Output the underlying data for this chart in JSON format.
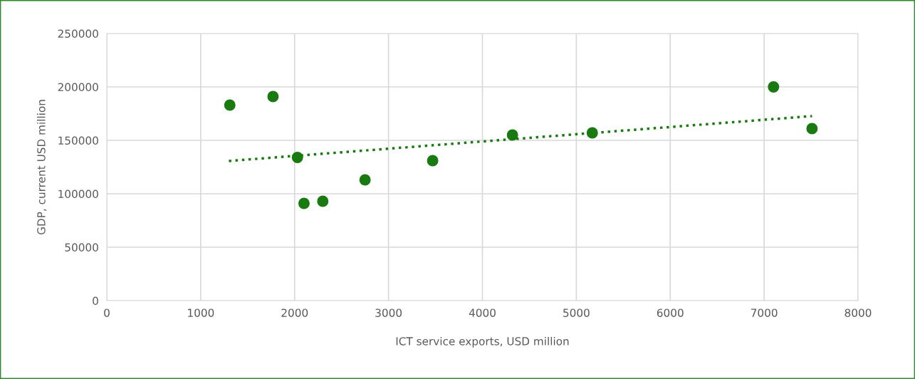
{
  "chart_data": {
    "type": "scatter",
    "xlabel": "ICT service exports, USD million",
    "ylabel": "GDP, current USD million",
    "xlim": [
      0,
      8000
    ],
    "xticks": [
      0,
      1000,
      2000,
      3000,
      4000,
      5000,
      6000,
      7000,
      8000
    ],
    "ylim": [
      0,
      250000
    ],
    "yticks": [
      0,
      50000,
      100000,
      150000,
      200000,
      250000
    ],
    "grid": true,
    "series": [
      {
        "color": "#1a7a12",
        "marker": "circle",
        "x": [
          1310,
          1770,
          2030,
          2100,
          2300,
          2750,
          3470,
          4320,
          5170,
          7100,
          7510
        ],
        "values": [
          183000,
          191000,
          134000,
          91000,
          93000,
          113000,
          131000,
          155000,
          157000,
          200000,
          161000
        ]
      },
      {
        "type": "line",
        "color": "#1a7a12",
        "line_style": "dotted",
        "x": [
          1300,
          7510
        ],
        "values": [
          130700,
          172700
        ]
      }
    ]
  }
}
